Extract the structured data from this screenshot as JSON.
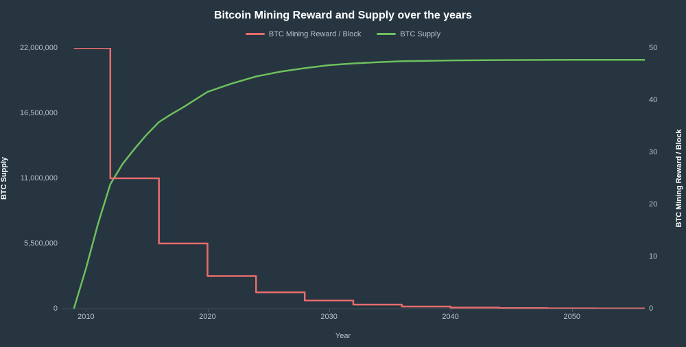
{
  "title": "Bitcoin Mining Reward and Supply over the years",
  "legend": [
    {
      "label": "BTC Mining Reward / Block",
      "color": "#e86c6c"
    },
    {
      "label": "BTC Supply",
      "color": "#6fbf5e"
    }
  ],
  "background_color": "#263540",
  "grid_color": "#4a5862",
  "text_color": "#b8c2c8",
  "title_color": "#ffffff",
  "title_fontsize": 16,
  "tick_fontsize": 11,
  "axis_label_fontsize": 11,
  "line_width": 2.5,
  "x_axis": {
    "label": "Year",
    "min": 2008,
    "max": 2056,
    "ticks": [
      2010,
      2020,
      2030,
      2040,
      2050
    ]
  },
  "y_left": {
    "label": "BTC Supply",
    "min": 0,
    "max": 22000000,
    "ticks": [
      0,
      5500000,
      11000000,
      16500000,
      22000000
    ],
    "tick_labels": [
      "0",
      "5,500,000",
      "11,000,000",
      "16,500,000",
      "22,000,000"
    ]
  },
  "y_right": {
    "label": "BTC Mining Reward / Block",
    "min": 0,
    "max": 50,
    "ticks": [
      0,
      10,
      20,
      30,
      40,
      50
    ]
  },
  "series_supply": {
    "axis": "left",
    "color": "#6fbf5e",
    "points": [
      [
        2009,
        0
      ],
      [
        2010,
        3400000
      ],
      [
        2011,
        7200000
      ],
      [
        2012,
        10500000
      ],
      [
        2013,
        12200000
      ],
      [
        2014,
        13500000
      ],
      [
        2015,
        14700000
      ],
      [
        2016,
        15750000
      ],
      [
        2017,
        16400000
      ],
      [
        2018,
        17000000
      ],
      [
        2020,
        18300000
      ],
      [
        2022,
        19000000
      ],
      [
        2024,
        19600000
      ],
      [
        2026,
        20000000
      ],
      [
        2028,
        20300000
      ],
      [
        2030,
        20550000
      ],
      [
        2032,
        20700000
      ],
      [
        2034,
        20800000
      ],
      [
        2036,
        20880000
      ],
      [
        2040,
        20950000
      ],
      [
        2044,
        20980000
      ],
      [
        2050,
        21000000
      ],
      [
        2056,
        21000000
      ]
    ]
  },
  "series_reward": {
    "axis": "right",
    "color": "#e86c6c",
    "step": true,
    "points": [
      [
        2009,
        50
      ],
      [
        2012,
        50
      ],
      [
        2012,
        25
      ],
      [
        2016,
        25
      ],
      [
        2016,
        12.5
      ],
      [
        2020,
        12.5
      ],
      [
        2020,
        6.25
      ],
      [
        2024,
        6.25
      ],
      [
        2024,
        3.125
      ],
      [
        2028,
        3.125
      ],
      [
        2028,
        1.5625
      ],
      [
        2032,
        1.5625
      ],
      [
        2032,
        0.78125
      ],
      [
        2036,
        0.78125
      ],
      [
        2036,
        0.390625
      ],
      [
        2040,
        0.390625
      ],
      [
        2040,
        0.1953125
      ],
      [
        2044,
        0.1953125
      ],
      [
        2044,
        0.0976
      ],
      [
        2048,
        0.0976
      ],
      [
        2048,
        0.0488
      ],
      [
        2052,
        0.0488
      ],
      [
        2052,
        0.0244
      ],
      [
        2056,
        0.0244
      ]
    ]
  }
}
